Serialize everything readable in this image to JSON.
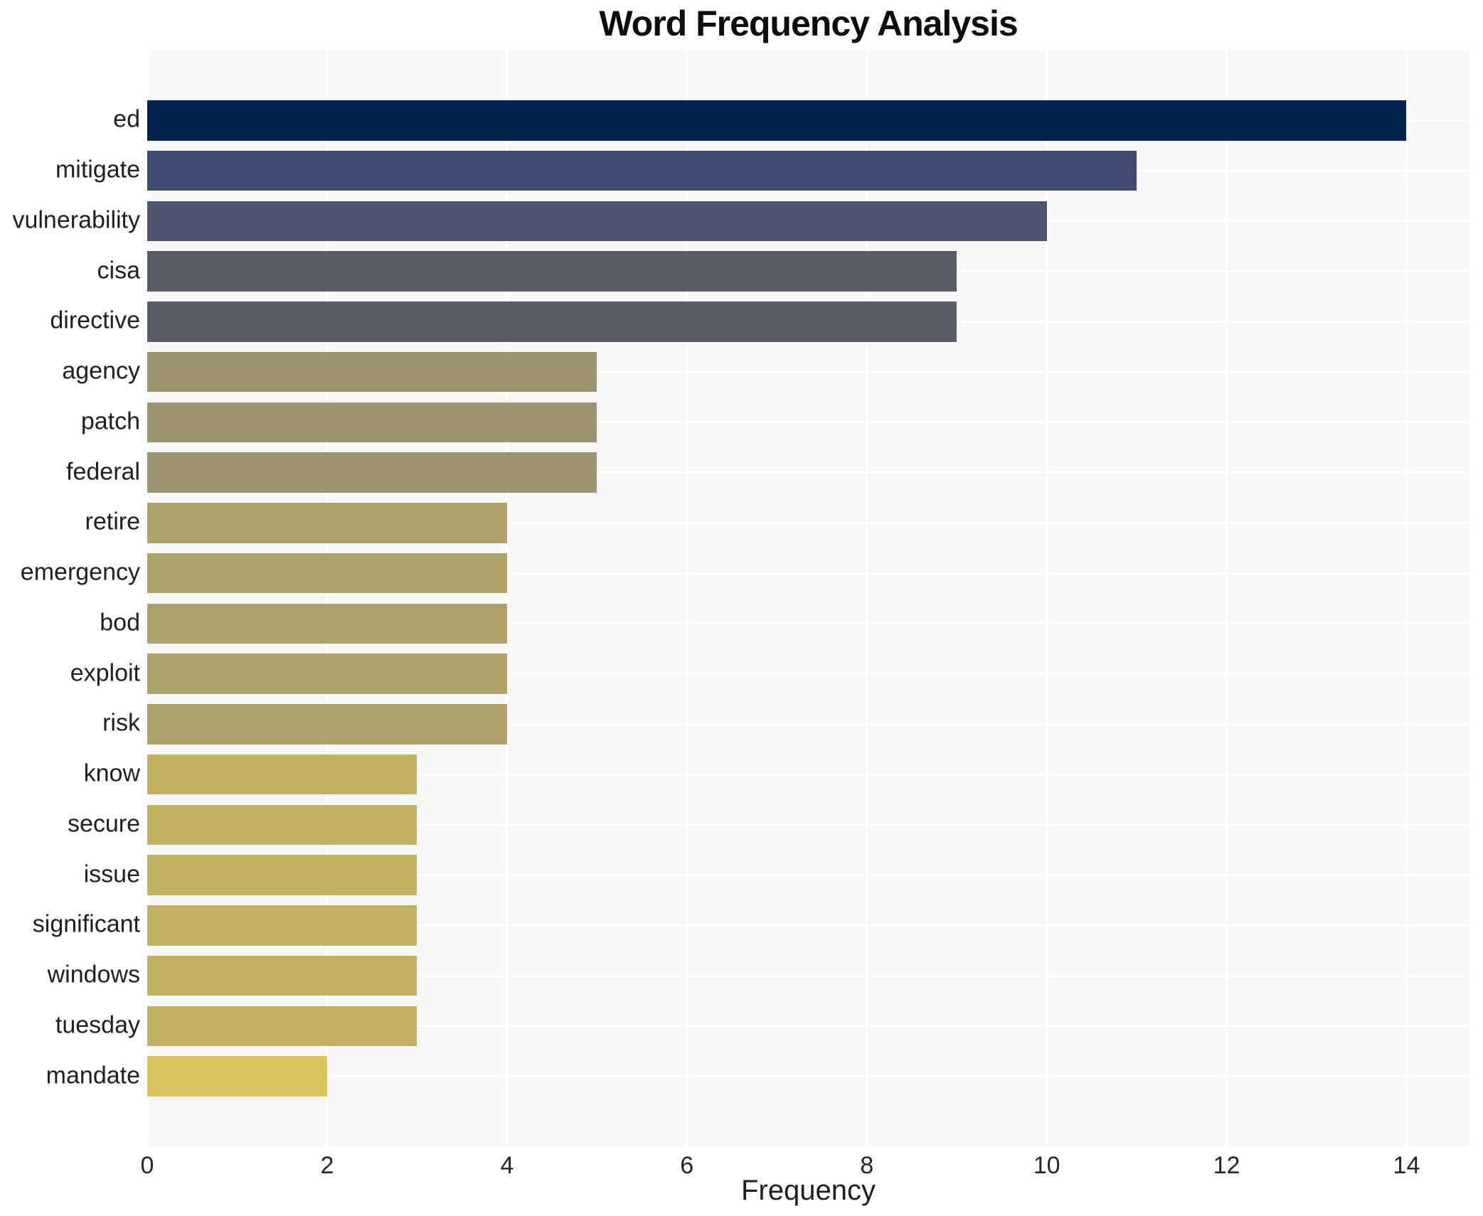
{
  "chart_data": {
    "type": "bar",
    "orientation": "horizontal",
    "title": "Word Frequency Analysis",
    "xlabel": "Frequency",
    "ylabel": "",
    "categories": [
      "ed",
      "mitigate",
      "vulnerability",
      "cisa",
      "directive",
      "agency",
      "patch",
      "federal",
      "retire",
      "emergency",
      "bod",
      "exploit",
      "risk",
      "know",
      "secure",
      "issue",
      "significant",
      "windows",
      "tuesday",
      "mandate"
    ],
    "values": [
      14,
      11,
      10,
      9,
      9,
      5,
      5,
      5,
      4,
      4,
      4,
      4,
      4,
      3,
      3,
      3,
      3,
      3,
      3,
      2
    ],
    "bar_colors": [
      "#032450",
      "#3e4a72",
      "#4d5571",
      "#5a5d68",
      "#5a5d68",
      "#9c9471",
      "#9c9471",
      "#9c9471",
      "#aca16b",
      "#aca16b",
      "#aca16b",
      "#aca16b",
      "#aca16b",
      "#c1b264",
      "#c1b264",
      "#c1b264",
      "#c1b264",
      "#c1b264",
      "#c1b264",
      "#d9c45c"
    ],
    "xticks": [
      0,
      2,
      4,
      6,
      8,
      10,
      12,
      14
    ],
    "xlim": [
      0,
      14.7
    ],
    "grid": true,
    "legend": "none",
    "panel_background": "#f7f7f7",
    "grid_color": "#ffffff",
    "text_color": "#1f1f1f"
  }
}
